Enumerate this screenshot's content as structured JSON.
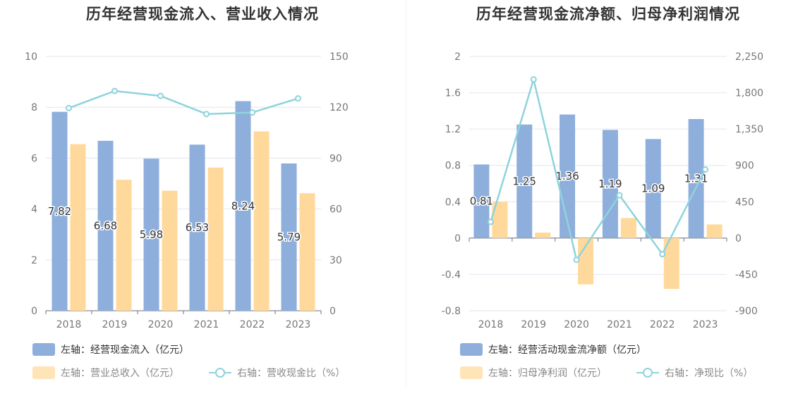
{
  "colors": {
    "blue": "#8eaedc",
    "orange": "#ffd99b",
    "cyan": "#8fd3dc"
  },
  "chart_data": [
    {
      "type": "bar",
      "title": "历年经营现金流入、营业收入情况",
      "categories": [
        "2018",
        "2019",
        "2020",
        "2021",
        "2022",
        "2023"
      ],
      "left_axis": {
        "ticks": [
          "0",
          "2",
          "4",
          "6",
          "8",
          "10"
        ],
        "ylim": [
          0,
          10
        ]
      },
      "right_axis": {
        "ticks": [
          "0",
          "30",
          "60",
          "90",
          "120",
          "150"
        ],
        "ylim": [
          0,
          150
        ]
      },
      "series": [
        {
          "name": "左轴：经营现金流入（亿元）",
          "type": "bar",
          "axis": "left",
          "color": "#8eaedc",
          "values": [
            7.82,
            6.68,
            5.98,
            6.53,
            8.24,
            5.79
          ],
          "labels": [
            "7.82",
            "6.68",
            "5.98",
            "6.53",
            "8.24",
            "5.79"
          ]
        },
        {
          "name": "左轴：营业总收入（亿元）",
          "type": "bar",
          "axis": "left",
          "color": "#ffd99b",
          "values": [
            6.55,
            5.15,
            4.72,
            5.63,
            7.05,
            4.62
          ]
        },
        {
          "name": "右轴：营收现金比（%）",
          "type": "line",
          "axis": "right",
          "color": "#8fd3dc",
          "values": [
            119.5,
            129.6,
            126.7,
            116.0,
            116.9,
            125.2
          ]
        }
      ]
    },
    {
      "type": "bar",
      "title": "历年经营现金流净额、归母净利润情况",
      "categories": [
        "2018",
        "2019",
        "2020",
        "2021",
        "2022",
        "2023"
      ],
      "left_axis": {
        "ticks": [
          "-0.8",
          "-0.4",
          "0",
          "0.4",
          "0.8",
          "1.2",
          "1.6",
          "2"
        ],
        "ylim": [
          -0.8,
          2
        ]
      },
      "right_axis": {
        "ticks": [
          "-900",
          "-450",
          "0",
          "450",
          "900",
          "1,350",
          "1,800",
          "2,250"
        ],
        "ylim": [
          -900,
          2250
        ]
      },
      "series": [
        {
          "name": "左轴：经营活动现金流净额（亿元）",
          "type": "bar",
          "axis": "left",
          "color": "#8eaedc",
          "values": [
            0.81,
            1.25,
            1.36,
            1.19,
            1.09,
            1.31
          ],
          "labels": [
            "0.81",
            "1.25",
            "1.36",
            "1.19",
            "1.09",
            "1.31"
          ]
        },
        {
          "name": "左轴：归母净利润（亿元）",
          "type": "bar",
          "axis": "left",
          "color": "#ffd99b",
          "values": [
            0.4,
            0.06,
            -0.51,
            0.22,
            -0.56,
            0.15
          ]
        },
        {
          "name": "右轴：净现比（%）",
          "type": "line",
          "axis": "right",
          "color": "#8fd3dc",
          "values": [
            200,
            1965,
            -270,
            530,
            -200,
            850
          ]
        }
      ]
    }
  ]
}
